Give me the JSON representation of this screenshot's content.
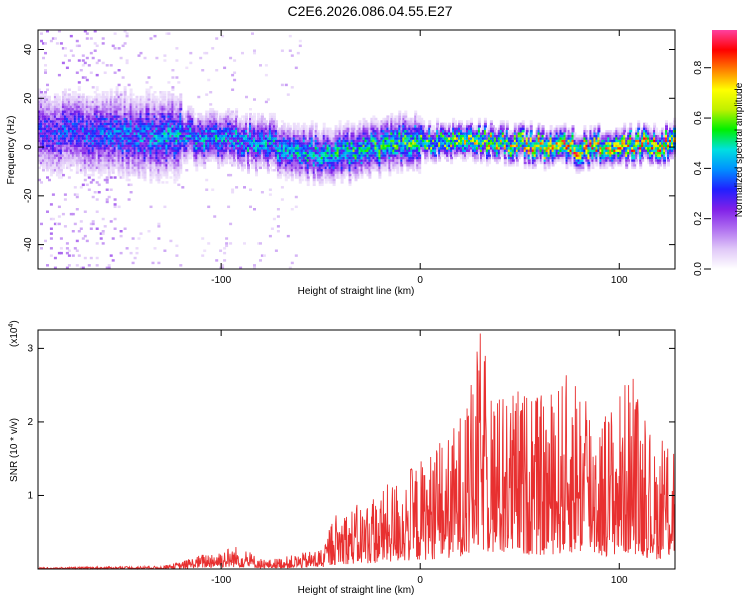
{
  "page_title": "C2E6.2026.086.04.55.E27",
  "chart_data": [
    {
      "type": "heatmap",
      "panel": "spectrogram",
      "xlabel": "Height of straight line (km)",
      "ylabel": "Frequency (Hz)",
      "xlim": [
        -192,
        128
      ],
      "ylim": [
        -50,
        48
      ],
      "x_ticks": [
        -100,
        0,
        100
      ],
      "y_ticks": [
        -40,
        -20,
        0,
        20,
        40
      ],
      "x_tick_labels": [
        "-100",
        "0",
        "100"
      ],
      "y_tick_labels": [
        "-40",
        "-20",
        "0",
        "20",
        "40"
      ],
      "colorbar": {
        "label": "Normalized spectral amplitude",
        "range": [
          0.0,
          0.95
        ],
        "ticks": [
          0.0,
          0.2,
          0.4,
          0.6,
          0.8
        ],
        "tick_labels": [
          "0.0",
          "0.2",
          "0.4",
          "0.6",
          "0.8"
        ],
        "colors": [
          "#ffffff",
          "#e0c8f8",
          "#b070f0",
          "#8020e8",
          "#2020ff",
          "#0090ff",
          "#00e0e0",
          "#00f000",
          "#c0f000",
          "#ffff00",
          "#ff8000",
          "#ff0000",
          "#ff40a0"
        ]
      },
      "ridge": [
        {
          "x": -190,
          "center": 6,
          "amp": 0.3
        },
        {
          "x": -160,
          "center": 5,
          "amp": 0.35
        },
        {
          "x": -130,
          "center": 4,
          "amp": 0.4
        },
        {
          "x": -100,
          "center": 3,
          "amp": 0.42
        },
        {
          "x": -80,
          "center": 1,
          "amp": 0.42
        },
        {
          "x": -65,
          "center": -2,
          "amp": 0.42
        },
        {
          "x": -50,
          "center": -4,
          "amp": 0.45
        },
        {
          "x": -35,
          "center": -3,
          "amp": 0.48
        },
        {
          "x": -20,
          "center": 0,
          "amp": 0.5
        },
        {
          "x": 0,
          "center": 2,
          "amp": 0.55
        },
        {
          "x": 20,
          "center": 2,
          "amp": 0.62
        },
        {
          "x": 40,
          "center": 1,
          "amp": 0.66
        },
        {
          "x": 60,
          "center": 0,
          "amp": 0.7
        },
        {
          "x": 80,
          "center": -1,
          "amp": 0.72
        },
        {
          "x": 100,
          "center": 0,
          "amp": 0.72
        },
        {
          "x": 128,
          "center": 1,
          "amp": 0.7
        }
      ]
    },
    {
      "type": "line",
      "panel": "snr",
      "xlabel": "Height of straight line (km)",
      "ylabel": "SNR (10 * v/v)",
      "scale_label": "(x10",
      "scale_exponent": "4",
      "scale_suffix": ")",
      "xlim": [
        -192,
        128
      ],
      "ylim": [
        0,
        3.25
      ],
      "x_ticks": [
        -100,
        0,
        100
      ],
      "y_ticks": [
        1,
        2,
        3
      ],
      "x_tick_labels": [
        "-100",
        "0",
        "100"
      ],
      "y_tick_labels": [
        "1",
        "2",
        "3"
      ],
      "color": "#e83030",
      "envelope": [
        {
          "x": -192,
          "y": 0.02
        },
        {
          "x": -130,
          "y": 0.04
        },
        {
          "x": -120,
          "y": 0.1
        },
        {
          "x": -105,
          "y": 0.25
        },
        {
          "x": -92,
          "y": 0.32
        },
        {
          "x": -78,
          "y": 0.12
        },
        {
          "x": -62,
          "y": 0.2
        },
        {
          "x": -48,
          "y": 0.3
        },
        {
          "x": -44,
          "y": 0.75
        },
        {
          "x": -25,
          "y": 0.95
        },
        {
          "x": -10,
          "y": 1.3
        },
        {
          "x": 0,
          "y": 1.5
        },
        {
          "x": 15,
          "y": 1.85
        },
        {
          "x": 25,
          "y": 2.45
        },
        {
          "x": 30,
          "y": 3.25
        },
        {
          "x": 38,
          "y": 2.4
        },
        {
          "x": 50,
          "y": 2.5
        },
        {
          "x": 62,
          "y": 2.35
        },
        {
          "x": 78,
          "y": 2.8
        },
        {
          "x": 92,
          "y": 2.15
        },
        {
          "x": 106,
          "y": 2.7
        },
        {
          "x": 118,
          "y": 1.6
        },
        {
          "x": 128,
          "y": 2.05
        }
      ]
    }
  ]
}
